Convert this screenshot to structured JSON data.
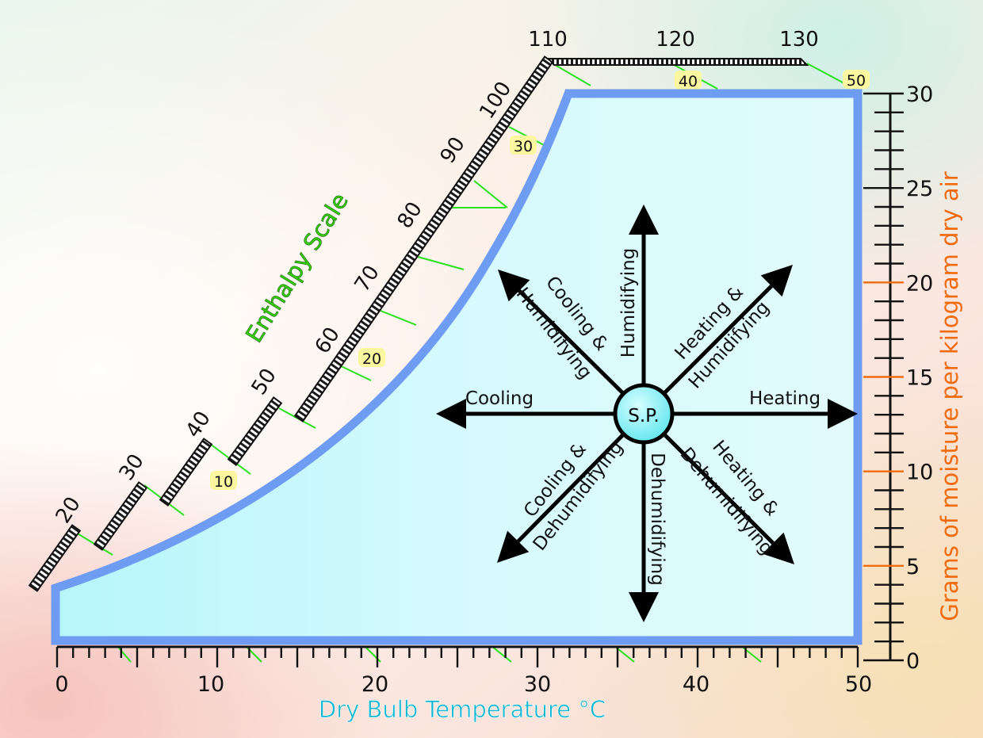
{
  "chart_data": {
    "type": "diagram",
    "title": "",
    "xlabel": "Dry Bulb Temperature °C",
    "ylabel": "Grams of moisture per kilogram dry air",
    "enthalpy_label": "Enthalpy Scale",
    "x_ticks": [
      "0",
      "10",
      "20",
      "30",
      "40",
      "50"
    ],
    "y_ticks": [
      "0",
      "5",
      "10",
      "15",
      "20",
      "25",
      "30"
    ],
    "enthalpy_ticks": [
      "20",
      "30",
      "40",
      "50",
      "60",
      "70",
      "80",
      "90",
      "100",
      "110",
      "120",
      "130"
    ],
    "wet_bulb_labels": [
      "10",
      "20",
      "30",
      "40",
      "50"
    ],
    "center_label": "S.P.",
    "processes": [
      {
        "direction": "up",
        "label": "Humidifying"
      },
      {
        "direction": "down",
        "label": "Dehumidifying"
      },
      {
        "direction": "left",
        "label": "Cooling"
      },
      {
        "direction": "right",
        "label": "Heating"
      },
      {
        "direction": "up-left",
        "label": [
          "Cooling &",
          "Humidifying"
        ]
      },
      {
        "direction": "up-right",
        "label": [
          "Heating &",
          "Humidifying"
        ]
      },
      {
        "direction": "down-left",
        "label": [
          "Cooling &",
          "Dehumidifying"
        ]
      },
      {
        "direction": "down-right",
        "label": [
          "Heating &",
          "Dehumidifying"
        ]
      }
    ],
    "colors": {
      "chart_fill": "#d8fbfd",
      "chart_border": "#6f9cf3",
      "enthalpy_label": "#36d40c",
      "xlabel": "#11b7cf",
      "ylabel": "#f06a0e",
      "wet_bulb_line": "#28e21c",
      "wet_bulb_badge": "#fbf7a0",
      "center_fill": "#7ff0f4"
    }
  }
}
